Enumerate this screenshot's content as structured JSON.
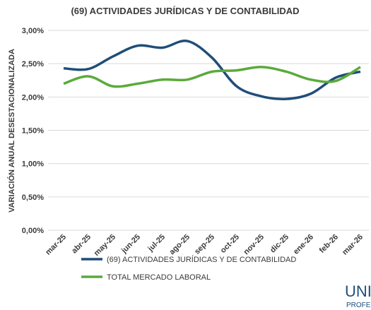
{
  "chart_data": {
    "type": "line",
    "title": "(69) ACTIVIDADES JURÍDICAS Y DE CONTABILIDAD",
    "y_label": "VARIACIÓN ANUAL DESESTACIONALIZADA",
    "categories": [
      "mar-25",
      "abr-25",
      "may-25",
      "jun-25",
      "jul-25",
      "ago-25",
      "sep-25",
      "oct-25",
      "nov-25",
      "dic-25",
      "ene-26",
      "feb-26",
      "mar-26"
    ],
    "series": [
      {
        "name": "(69) ACTIVIDADES JURÍDICAS Y DE CONTABILIDAD",
        "color": "#1f4e79",
        "values": [
          2.43,
          2.42,
          2.61,
          2.77,
          2.74,
          2.84,
          2.59,
          2.16,
          2.01,
          1.97,
          2.05,
          2.29,
          2.38
        ]
      },
      {
        "name": "TOTAL MERCADO LABORAL",
        "color": "#5aaa3c",
        "values": [
          2.2,
          2.31,
          2.16,
          2.2,
          2.26,
          2.26,
          2.38,
          2.4,
          2.45,
          2.38,
          2.26,
          2.24,
          2.45
        ]
      }
    ],
    "ylim": [
      0,
      3
    ],
    "yticks": [
      {
        "value": 0,
        "label": "0,00%"
      },
      {
        "value": 0.5,
        "label": "0,50%"
      },
      {
        "value": 1,
        "label": "1,00%"
      },
      {
        "value": 1.5,
        "label": "1,50%"
      },
      {
        "value": 2,
        "label": "2,00%"
      },
      {
        "value": 2.5,
        "label": "2,50%"
      },
      {
        "value": 3,
        "label": "3,00%"
      }
    ],
    "grid": true,
    "legend": "bottom",
    "logo": [
      "UNIO",
      "PROFESIO"
    ]
  }
}
